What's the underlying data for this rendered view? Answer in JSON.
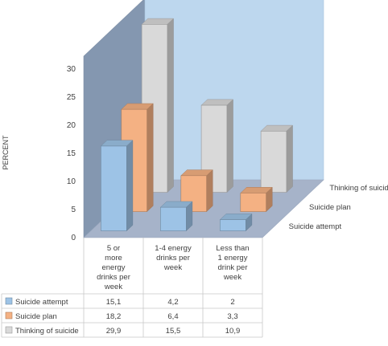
{
  "chart_data": {
    "type": "bar",
    "subtype": "3d-clustered-column-with-data-table",
    "title": "",
    "xlabel": "",
    "ylabel": "PERCENT",
    "ylim": [
      0,
      30
    ],
    "yticks": [
      0,
      5,
      10,
      15,
      20,
      25,
      30
    ],
    "grid": false,
    "legend": "data-table",
    "categories": [
      [
        "5 or",
        "more",
        "energy",
        "drinks per",
        "week"
      ],
      [
        "1-4 energy",
        "drinks per",
        "week"
      ],
      [
        "Less than",
        "1 energy",
        "drink per",
        "week"
      ]
    ],
    "series": [
      {
        "name": "Suicide attempt",
        "values": [
          15.1,
          4.2,
          2
        ],
        "labels": [
          "15,1",
          "4,2",
          "2"
        ],
        "color": "#9DC3E6",
        "depth_label": "Suicide attempt"
      },
      {
        "name": "Suicide plan",
        "values": [
          18.2,
          6.4,
          3.3
        ],
        "labels": [
          "18,2",
          "6,4",
          "3,3"
        ],
        "color": "#F4B183",
        "depth_label": "Suicide plan"
      },
      {
        "name": "Thinking of suicide",
        "values": [
          29.9,
          15.5,
          10.9
        ],
        "labels": [
          "29,9",
          "15,5",
          "10,9"
        ],
        "color": "#D9D9D9",
        "depth_label": "Thinking of suicide"
      }
    ],
    "colors": {
      "back_wall": "#BDD7EE",
      "side_wall": "#8497B0",
      "floor": "#A6B3C9"
    }
  }
}
